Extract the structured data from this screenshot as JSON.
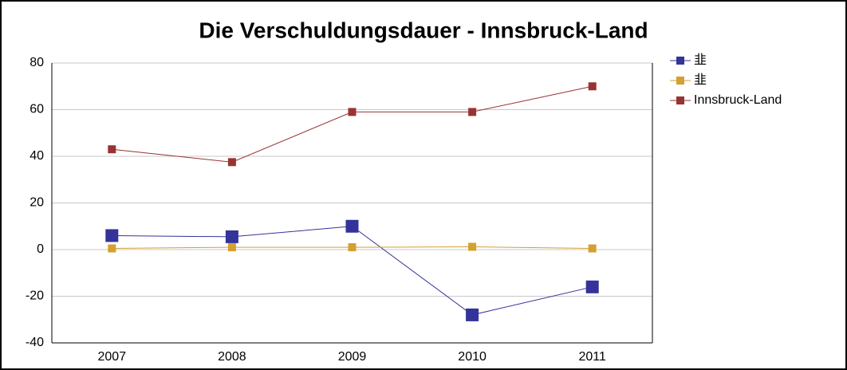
{
  "chart_data": {
    "type": "line",
    "title": "Die Verschuldungsdauer - Innsbruck-Land",
    "categories": [
      "2007",
      "2008",
      "2009",
      "2010",
      "2011"
    ],
    "series": [
      {
        "name": "韭",
        "color": "#333399",
        "marker_size": 16,
        "values": [
          6,
          5.5,
          10,
          -28,
          -16
        ]
      },
      {
        "name": "韭",
        "color": "#d4a030",
        "marker_size": 10,
        "values": [
          0.5,
          1,
          1,
          1.2,
          0.5
        ]
      },
      {
        "name": "Innsbruck-Land",
        "color": "#993333",
        "marker_size": 10,
        "values": [
          43,
          37.5,
          59,
          59,
          70
        ]
      }
    ],
    "ylim": [
      -40,
      80
    ],
    "yticks": [
      -40,
      -20,
      0,
      20,
      40,
      60,
      80
    ],
    "grid": true,
    "legend": "right"
  }
}
